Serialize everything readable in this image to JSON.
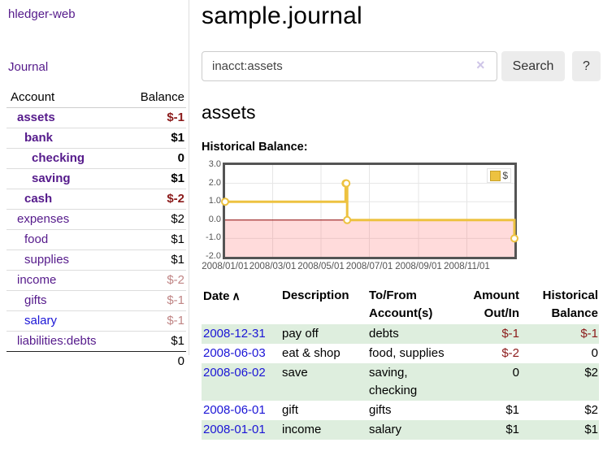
{
  "app": {
    "title": "hledger-web"
  },
  "sidebar": {
    "nav_journal": "Journal",
    "accounts_table": {
      "headers": {
        "account": "Account",
        "balance": "Balance"
      },
      "accounts": [
        {
          "name": "assets",
          "balance": "$-1",
          "depth": 0,
          "matched": true,
          "unvisited": false
        },
        {
          "name": "bank",
          "balance": "$1",
          "depth": 1,
          "matched": true,
          "unvisited": false
        },
        {
          "name": "checking",
          "balance": "0",
          "depth": 2,
          "matched": true,
          "unvisited": false
        },
        {
          "name": "saving",
          "balance": "$1",
          "depth": 2,
          "matched": true,
          "unvisited": false
        },
        {
          "name": "cash",
          "balance": "$-2",
          "depth": 1,
          "matched": true,
          "unvisited": false
        },
        {
          "name": "expenses",
          "balance": "$2",
          "depth": 0,
          "matched": false,
          "unvisited": false
        },
        {
          "name": "food",
          "balance": "$1",
          "depth": 1,
          "matched": false,
          "unvisited": false
        },
        {
          "name": "supplies",
          "balance": "$1",
          "depth": 1,
          "matched": false,
          "unvisited": false
        },
        {
          "name": "income",
          "balance": "$-2",
          "depth": 0,
          "matched": false,
          "unvisited": false
        },
        {
          "name": "gifts",
          "balance": "$-1",
          "depth": 1,
          "matched": false,
          "unvisited": false
        },
        {
          "name": "salary",
          "balance": "$-1",
          "depth": 1,
          "matched": false,
          "unvisited": true
        },
        {
          "name": "liabilities:debts",
          "balance": "$1",
          "depth": 0,
          "matched": false,
          "unvisited": false
        }
      ],
      "total": "0"
    }
  },
  "main": {
    "title": "sample.journal",
    "search": {
      "value": "inacct:assets",
      "clear_icon": "×",
      "search_label": "Search",
      "help_label": "?"
    },
    "account_heading": "assets",
    "chart_label": "Historical Balance:",
    "register": {
      "headers": [
        "Date",
        "Description",
        "To/From Account(s)",
        "Amount Out/In",
        "Historical Balance"
      ],
      "sort_icon": "∧",
      "rows": [
        {
          "date": "2008-12-31",
          "description": "pay off",
          "accounts": "debts",
          "amount": "$-1",
          "balance": "$-1"
        },
        {
          "date": "2008-06-03",
          "description": "eat & shop",
          "accounts": "food, supplies",
          "amount": "$-2",
          "balance": "0"
        },
        {
          "date": "2008-06-02",
          "description": "save",
          "accounts": "saving, checking",
          "amount": "0",
          "balance": "$2"
        },
        {
          "date": "2008-06-01",
          "description": "gift",
          "accounts": "gifts",
          "amount": "$1",
          "balance": "$2"
        },
        {
          "date": "2008-01-01",
          "description": "income",
          "accounts": "salary",
          "amount": "$1",
          "balance": "$1"
        }
      ]
    }
  },
  "chart_data": {
    "type": "line",
    "title": "Historical Balance:",
    "step": true,
    "series": [
      {
        "name": "$",
        "color": "#edc240",
        "points": [
          [
            "2008-01-01",
            1
          ],
          [
            "2008-06-01",
            2
          ],
          [
            "2008-06-02",
            2
          ],
          [
            "2008-06-03",
            0
          ],
          [
            "2008-12-31",
            -1
          ]
        ]
      }
    ],
    "xlim": [
      "2008-01-01",
      "2008-12-31"
    ],
    "ylim": [
      -2,
      3
    ],
    "x_ticks": [
      {
        "date": "2008-01-01",
        "label": "2008/01/01"
      },
      {
        "date": "2008-03-01",
        "label": "2008/03/01"
      },
      {
        "date": "2008-05-01",
        "label": "2008/05/01"
      },
      {
        "date": "2008-07-01",
        "label": "2008/07/01"
      },
      {
        "date": "2008-09-01",
        "label": "2008/09/01"
      },
      {
        "date": "2008-11-01",
        "label": "2008/11/01"
      }
    ],
    "y_ticks": [
      3.0,
      2.0,
      1.0,
      0.0,
      -1.0,
      -2.0
    ],
    "grid": true,
    "legend_position": "top-right",
    "negative_region_shaded": true,
    "colors": {
      "line": "#edc240",
      "zero_line": "#8b0000",
      "negative_fill": "rgba(255,110,110,0.25)",
      "grid": "#e6e6e6",
      "border": "#545454",
      "tick_text": "#545454"
    }
  },
  "colors": {
    "visited_link_purple": "#551a8b",
    "link_blue": "#1b15d6",
    "negative_red": "#8b1a1a",
    "negative_dim": "#c08585",
    "row_stripe_green": "#deeede",
    "button_gray": "#ececec"
  }
}
